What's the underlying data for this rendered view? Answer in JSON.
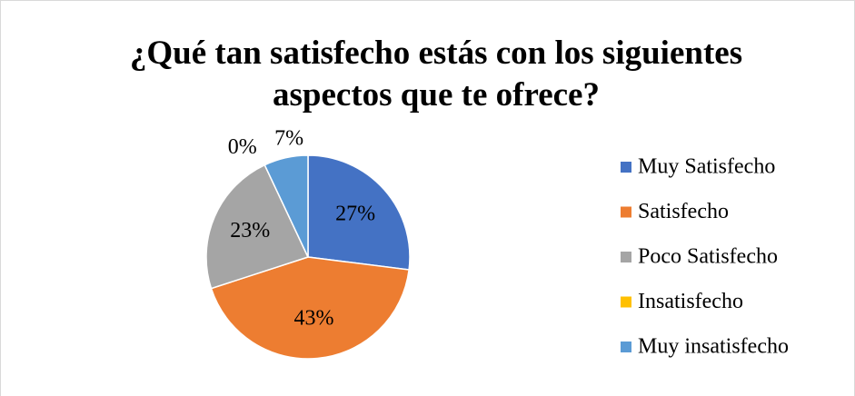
{
  "chart_data": {
    "type": "pie",
    "title": "¿Qué tan satisfecho estás con los siguientes aspectos que te ofrece?",
    "categories": [
      "Muy Satisfecho",
      "Satisfecho",
      "Poco Satisfecho",
      "Insatisfecho",
      "Muy insatisfecho"
    ],
    "values": [
      27,
      43,
      23,
      0,
      7
    ],
    "value_labels": [
      "27%",
      "43%",
      "23%",
      "0%",
      "7%"
    ],
    "colors": [
      "#4472c4",
      "#ed7d31",
      "#a5a5a5",
      "#ffc000",
      "#5b9bd5"
    ],
    "legend": "right"
  }
}
